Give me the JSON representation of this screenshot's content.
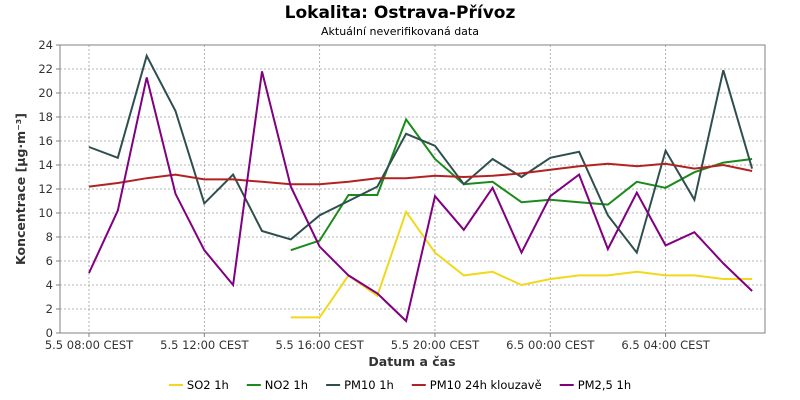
{
  "chart_data": {
    "type": "line",
    "title": "Lokalita: Ostrava-Přívoz",
    "subtitle": "Aktuální neverifikovaná data",
    "xlabel": "Datum a čas",
    "ylabel": "Koncentrace [µg·m⁻³]",
    "ylim": [
      0,
      24
    ],
    "y_ticks": [
      0,
      2,
      4,
      6,
      8,
      10,
      12,
      14,
      16,
      18,
      20,
      22,
      24
    ],
    "xlim": [
      0,
      23.7
    ],
    "x_ticks": [
      {
        "value": 0,
        "label": "5.5 08:00 CEST"
      },
      {
        "value": 4,
        "label": "5.5 12:00 CEST"
      },
      {
        "value": 8,
        "label": "5.5 16:00 CEST"
      },
      {
        "value": 12,
        "label": "5.5 20:00 CEST"
      },
      {
        "value": 16,
        "label": "6.5 00:00 CEST"
      },
      {
        "value": 20,
        "label": "6.5 04:00 CEST"
      }
    ],
    "grid": true,
    "legend_position": "bottom",
    "series": [
      {
        "name": "SO2 1h",
        "color": "#f2d81c",
        "points": [
          [
            7,
            1.3
          ],
          [
            8,
            1.3
          ],
          [
            9,
            4.8
          ],
          [
            10,
            3.1
          ],
          [
            11,
            10.1
          ],
          [
            12,
            6.7
          ],
          [
            13,
            4.8
          ],
          [
            14,
            5.1
          ],
          [
            15,
            4.0
          ],
          [
            16,
            4.5
          ],
          [
            17,
            4.8
          ],
          [
            18,
            4.8
          ],
          [
            19,
            5.1
          ],
          [
            20,
            4.8
          ],
          [
            21,
            4.8
          ],
          [
            22,
            4.5
          ],
          [
            23,
            4.5
          ]
        ]
      },
      {
        "name": "NO2 1h",
        "color": "#1a8a1a",
        "points": [
          [
            7,
            6.9
          ],
          [
            8,
            7.7
          ],
          [
            9,
            11.5
          ],
          [
            10,
            11.5
          ],
          [
            11,
            17.8
          ],
          [
            12,
            14.5
          ],
          [
            13,
            12.4
          ],
          [
            14,
            12.6
          ],
          [
            15,
            10.9
          ],
          [
            16,
            11.1
          ],
          [
            17,
            10.9
          ],
          [
            18,
            10.7
          ],
          [
            19,
            12.6
          ],
          [
            20,
            12.1
          ],
          [
            21,
            13.4
          ],
          [
            22,
            14.2
          ],
          [
            23,
            14.5
          ]
        ]
      },
      {
        "name": "PM10 1h",
        "color": "#2f4f4f",
        "points": [
          [
            0,
            15.5
          ],
          [
            1,
            14.6
          ],
          [
            2,
            23.1
          ],
          [
            3,
            18.5
          ],
          [
            4,
            10.8
          ],
          [
            5,
            13.2
          ],
          [
            6,
            8.5
          ],
          [
            7,
            7.8
          ],
          [
            8,
            9.8
          ],
          [
            9,
            11.0
          ],
          [
            10,
            12.2
          ],
          [
            11,
            16.6
          ],
          [
            12,
            15.6
          ],
          [
            13,
            12.4
          ],
          [
            14,
            14.5
          ],
          [
            15,
            13.0
          ],
          [
            16,
            14.6
          ],
          [
            17,
            15.1
          ],
          [
            18,
            9.8
          ],
          [
            19,
            6.7
          ],
          [
            20,
            15.2
          ],
          [
            21,
            11.1
          ],
          [
            22,
            21.9
          ],
          [
            23,
            13.7
          ]
        ]
      },
      {
        "name": "PM10 24h klouzavě",
        "color": "#b22222",
        "points": [
          [
            0,
            12.2
          ],
          [
            1,
            12.5
          ],
          [
            2,
            12.9
          ],
          [
            3,
            13.2
          ],
          [
            4,
            12.8
          ],
          [
            5,
            12.8
          ],
          [
            6,
            12.6
          ],
          [
            7,
            12.4
          ],
          [
            8,
            12.4
          ],
          [
            9,
            12.6
          ],
          [
            10,
            12.9
          ],
          [
            11,
            12.9
          ],
          [
            12,
            13.1
          ],
          [
            13,
            13.0
          ],
          [
            14,
            13.1
          ],
          [
            15,
            13.3
          ],
          [
            16,
            13.6
          ],
          [
            17,
            13.9
          ],
          [
            18,
            14.1
          ],
          [
            19,
            13.9
          ],
          [
            20,
            14.1
          ],
          [
            21,
            13.7
          ],
          [
            22,
            14.0
          ],
          [
            23,
            13.5
          ]
        ]
      },
      {
        "name": "PM2,5 1h",
        "color": "#800080",
        "points": [
          [
            0,
            5.0
          ],
          [
            1,
            10.2
          ],
          [
            2,
            21.3
          ],
          [
            3,
            11.6
          ],
          [
            4,
            6.9
          ],
          [
            5,
            4.0
          ],
          [
            6,
            21.8
          ],
          [
            7,
            12.2
          ],
          [
            8,
            7.2
          ],
          [
            9,
            4.8
          ],
          [
            10,
            3.3
          ],
          [
            11,
            1.0
          ],
          [
            12,
            11.4
          ],
          [
            13,
            8.6
          ],
          [
            14,
            12.1
          ],
          [
            15,
            6.7
          ],
          [
            16,
            11.4
          ],
          [
            17,
            13.2
          ],
          [
            18,
            7.0
          ],
          [
            19,
            11.7
          ],
          [
            20,
            7.3
          ],
          [
            21,
            8.4
          ],
          [
            22,
            5.8
          ],
          [
            23,
            3.5
          ]
        ]
      }
    ]
  }
}
